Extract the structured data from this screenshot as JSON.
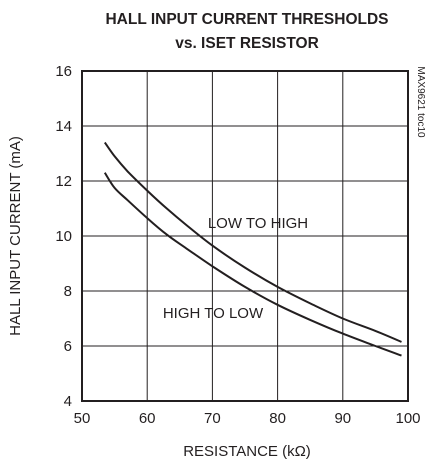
{
  "chart_data": {
    "type": "line",
    "title_line1": "HALL INPUT CURRENT THRESHOLDS",
    "title_line2": "vs. ISET RESISTOR",
    "xlabel": "RESISTANCE (kΩ)",
    "ylabel": "HALL INPUT CURRENT (mA)",
    "xlim": [
      50,
      100
    ],
    "ylim": [
      4,
      16
    ],
    "x_ticks": [
      50,
      60,
      70,
      80,
      90,
      100
    ],
    "y_ticks": [
      4,
      6,
      8,
      10,
      12,
      14,
      16
    ],
    "grid": true,
    "side_note": "MAX9621 toc10",
    "series": [
      {
        "name": "LOW TO HIGH",
        "x": [
          53.5,
          55,
          57,
          60,
          63,
          66,
          70,
          75,
          80,
          85,
          90,
          95,
          99
        ],
        "y": [
          13.4,
          12.9,
          12.35,
          11.65,
          11.0,
          10.4,
          9.65,
          8.85,
          8.15,
          7.55,
          7.0,
          6.55,
          6.15
        ]
      },
      {
        "name": "HIGH TO LOW",
        "x": [
          53.5,
          55,
          57,
          60,
          63,
          66,
          70,
          75,
          80,
          85,
          90,
          95,
          99
        ],
        "y": [
          12.3,
          11.75,
          11.3,
          10.65,
          10.05,
          9.55,
          8.9,
          8.15,
          7.5,
          6.95,
          6.45,
          6.0,
          5.65
        ]
      }
    ],
    "annotations": [
      "LOW TO HIGH",
      "HIGH TO LOW"
    ]
  }
}
